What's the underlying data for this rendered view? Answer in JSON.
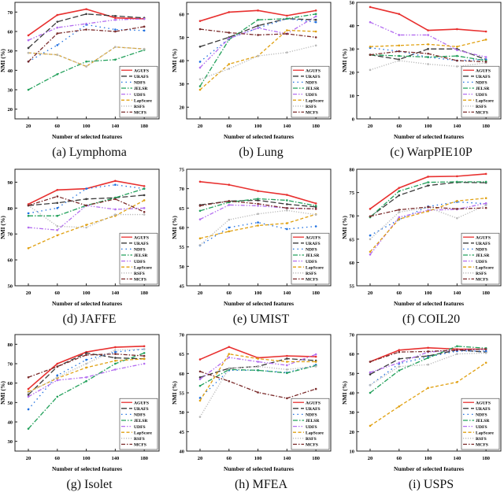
{
  "series_styles": {
    "AGUFS": {
      "color": "#e8302f"
    },
    "URAFS": {
      "color": "#3a3a3a"
    },
    "NDFS": {
      "color": "#1e6fe0"
    },
    "JELSR": {
      "color": "#21a05a"
    },
    "UDFS": {
      "color": "#b36df0"
    },
    "LapScore": {
      "color": "#e0a010"
    },
    "RSFS": {
      "color": "#b8b8b8"
    },
    "MCFS": {
      "color": "#7a2a2a"
    }
  },
  "chart_data": [
    {
      "type": "line",
      "caption": "(a) Lymphoma",
      "xlabel": "Number of selected features",
      "ylabel": "NMI (%)",
      "x": [
        20,
        60,
        100,
        140,
        180
      ],
      "ylim": [
        15,
        75
      ],
      "yticks": [
        20,
        30,
        40,
        50,
        60,
        70
      ],
      "legend": "bottom-right",
      "series": [
        {
          "name": "AGUFS",
          "values": [
            58,
            68.5,
            71.5,
            67,
            66.5
          ]
        },
        {
          "name": "URAFS",
          "values": [
            51.5,
            65,
            69,
            68,
            67
          ]
        },
        {
          "name": "NDFS",
          "values": [
            44.5,
            53,
            63.5,
            61,
            60.5
          ]
        },
        {
          "name": "JELSR",
          "values": [
            30,
            38,
            44.5,
            45.5,
            50.5
          ]
        },
        {
          "name": "UDFS",
          "values": [
            55.5,
            62,
            64,
            66,
            66.5
          ]
        },
        {
          "name": "LapScore",
          "values": [
            49,
            48,
            42,
            52,
            51
          ]
        },
        {
          "name": "RSFS",
          "values": [
            49,
            48,
            42,
            52,
            51
          ]
        },
        {
          "name": "MCFS",
          "values": [
            44.5,
            59,
            61,
            60,
            62.5
          ]
        }
      ]
    },
    {
      "type": "line",
      "caption": "(b) Lung",
      "xlabel": "Number of selected features",
      "ylabel": "NMI (%)",
      "x": [
        20,
        60,
        100,
        140,
        180
      ],
      "ylim": [
        15,
        65
      ],
      "yticks": [
        20,
        30,
        40,
        50,
        60
      ],
      "legend": "bottom-right",
      "series": [
        {
          "name": "AGUFS",
          "values": [
            57,
            60.8,
            61.5,
            59.3,
            61.5
          ]
        },
        {
          "name": "URAFS",
          "values": [
            46,
            50,
            55,
            58,
            57.5
          ]
        },
        {
          "name": "NDFS",
          "values": [
            39.5,
            49.5,
            54,
            58,
            56.5
          ]
        },
        {
          "name": "JELSR",
          "values": [
            29,
            49,
            57.5,
            58,
            60
          ]
        },
        {
          "name": "UDFS",
          "values": [
            37,
            49.5,
            54,
            51.5,
            59
          ]
        },
        {
          "name": "LapScore",
          "values": [
            27.5,
            38.5,
            42,
            53,
            52.5
          ]
        },
        {
          "name": "RSFS",
          "values": [
            32,
            36.5,
            42,
            43.5,
            46.5
          ]
        },
        {
          "name": "MCFS",
          "values": [
            53.5,
            52,
            51,
            51.5,
            50
          ]
        }
      ]
    },
    {
      "type": "line",
      "caption": "(c) WarpPIE10P",
      "xlabel": "Number of selected features",
      "ylabel": "NMI (%)",
      "x": [
        20,
        60,
        100,
        140,
        180
      ],
      "ylim": [
        0,
        50
      ],
      "yticks": [
        0,
        10,
        20,
        30,
        40,
        50
      ],
      "legend": "bottom-right",
      "series": [
        {
          "name": "AGUFS",
          "values": [
            48,
            45,
            38,
            38.5,
            37.5
          ]
        },
        {
          "name": "URAFS",
          "values": [
            27.5,
            25.5,
            30,
            30,
            25.5
          ]
        },
        {
          "name": "NDFS",
          "values": [
            30.5,
            29,
            26.5,
            25,
            25.5
          ]
        },
        {
          "name": "JELSR",
          "values": [
            27.5,
            27,
            26.5,
            27,
            25
          ]
        },
        {
          "name": "UDFS",
          "values": [
            41.5,
            36,
            36,
            29.5,
            26.5
          ]
        },
        {
          "name": "LapScore",
          "values": [
            31,
            31.5,
            32,
            31,
            34
          ]
        },
        {
          "name": "RSFS",
          "values": [
            21,
            25,
            23.5,
            22.5,
            24
          ]
        },
        {
          "name": "MCFS",
          "values": [
            27.5,
            29,
            28,
            25,
            24.5
          ]
        }
      ]
    },
    {
      "type": "line",
      "caption": "(d) JAFFE",
      "xlabel": "Number of selected features",
      "ylabel": "NMI (%)",
      "x": [
        20,
        60,
        100,
        140,
        180
      ],
      "ylim": [
        50,
        95
      ],
      "yticks": [
        50,
        60,
        70,
        80,
        90
      ],
      "legend": "bottom-right",
      "series": [
        {
          "name": "AGUFS",
          "values": [
            81.5,
            87,
            87.5,
            90.5,
            88.5
          ]
        },
        {
          "name": "URAFS",
          "values": [
            81,
            82,
            83.5,
            84,
            85
          ]
        },
        {
          "name": "NDFS",
          "values": [
            78,
            80,
            87.5,
            89,
            87.5
          ]
        },
        {
          "name": "JELSR",
          "values": [
            77,
            77,
            81,
            84,
            87.5
          ]
        },
        {
          "name": "UDFS",
          "values": [
            72.5,
            71.5,
            81,
            79.5,
            80
          ]
        },
        {
          "name": "LapScore",
          "values": [
            64.5,
            69.5,
            73.5,
            77,
            83
          ]
        },
        {
          "name": "RSFS",
          "values": [
            81,
            73,
            72.5,
            77.5,
            77.5
          ]
        },
        {
          "name": "MCFS",
          "values": [
            81,
            84.5,
            81,
            83.5,
            78.5
          ]
        }
      ]
    },
    {
      "type": "line",
      "caption": "(e) UMIST",
      "xlabel": "Number of selected features",
      "ylabel": "NMI (%)",
      "x": [
        20,
        60,
        100,
        140,
        180
      ],
      "ylim": [
        45,
        75
      ],
      "yticks": [
        45,
        50,
        55,
        60,
        65,
        70,
        75
      ],
      "legend": "bottom-right",
      "series": [
        {
          "name": "AGUFS",
          "values": [
            71.8,
            71,
            69.4,
            68.4,
            66.2
          ]
        },
        {
          "name": "URAFS",
          "values": [
            65.8,
            66.8,
            67,
            66,
            65.3
          ]
        },
        {
          "name": "NDFS",
          "values": [
            55.4,
            60,
            61.3,
            59.6,
            60.3
          ]
        },
        {
          "name": "JELSR",
          "values": [
            64.3,
            66.5,
            67.4,
            67,
            65.6
          ]
        },
        {
          "name": "UDFS",
          "values": [
            62.1,
            65.8,
            65.6,
            65,
            64.8
          ]
        },
        {
          "name": "LapScore",
          "values": [
            57.2,
            59,
            60.5,
            61.1,
            63.4
          ]
        },
        {
          "name": "RSFS",
          "values": [
            55.5,
            62,
            63.5,
            64.4,
            63.3
          ]
        },
        {
          "name": "MCFS",
          "values": [
            65.6,
            66.8,
            66.1,
            65,
            64.8
          ]
        }
      ]
    },
    {
      "type": "line",
      "caption": "(f) COIL20",
      "xlabel": "Number of selected features",
      "ylabel": "NMI (%)",
      "x": [
        20,
        60,
        100,
        140,
        180
      ],
      "ylim": [
        55,
        80
      ],
      "yticks": [
        55,
        60,
        65,
        70,
        75,
        80
      ],
      "legend": "bottom-right",
      "series": [
        {
          "name": "AGUFS",
          "values": [
            71.5,
            76,
            78.4,
            78.5,
            79
          ]
        },
        {
          "name": "URAFS",
          "values": [
            69.8,
            74.4,
            76.5,
            77.2,
            77.1
          ]
        },
        {
          "name": "NDFS",
          "values": [
            65.8,
            69.2,
            72,
            73,
            72.6
          ]
        },
        {
          "name": "JELSR",
          "values": [
            69.7,
            75.3,
            77.2,
            77.3,
            77.3
          ]
        },
        {
          "name": "UDFS",
          "values": [
            61.7,
            69.7,
            71.2,
            71.4,
            72.7
          ]
        },
        {
          "name": "LapScore",
          "values": [
            62.3,
            69.3,
            71,
            73.2,
            73.8
          ]
        },
        {
          "name": "RSFS",
          "values": [
            65,
            70.8,
            71.8,
            69.5,
            72.3
          ]
        },
        {
          "name": "MCFS",
          "values": [
            69.9,
            71.3,
            71.9,
            71.5,
            71.7
          ]
        }
      ]
    },
    {
      "type": "line",
      "caption": "(g) Isolet",
      "xlabel": "Number of selected features",
      "ylabel": "NMI (%)",
      "x": [
        20,
        60,
        100,
        140,
        180
      ],
      "ylim": [
        25,
        85
      ],
      "yticks": [
        30,
        40,
        50,
        60,
        70,
        80
      ],
      "legend": "bottom-right",
      "series": [
        {
          "name": "AGUFS",
          "values": [
            57,
            70,
            76,
            78.5,
            79
          ]
        },
        {
          "name": "URAFS",
          "values": [
            54,
            68.5,
            75.5,
            73,
            72.5
          ]
        },
        {
          "name": "NDFS",
          "values": [
            46.5,
            64,
            72,
            76,
            77.5
          ]
        },
        {
          "name": "JELSR",
          "values": [
            36.5,
            53,
            61,
            70,
            75.5
          ]
        },
        {
          "name": "UDFS",
          "values": [
            53,
            61.5,
            63,
            67,
            70
          ]
        },
        {
          "name": "LapScore",
          "values": [
            55.5,
            62.5,
            68,
            71.5,
            72.5
          ]
        },
        {
          "name": "RSFS",
          "values": [
            55,
            63,
            70,
            77,
            77.5
          ]
        },
        {
          "name": "MCFS",
          "values": [
            63,
            68.5,
            74.5,
            75,
            74
          ]
        }
      ]
    },
    {
      "type": "line",
      "caption": "(h) MFEA",
      "xlabel": "Number of selected features",
      "ylabel": "NMI (%)",
      "x": [
        20,
        60,
        100,
        140,
        180
      ],
      "ylim": [
        40,
        70
      ],
      "yticks": [
        40,
        45,
        50,
        55,
        60,
        65,
        70
      ],
      "legend": "bottom-right",
      "series": [
        {
          "name": "AGUFS",
          "values": [
            63.6,
            66.8,
            64,
            64.5,
            64.3
          ]
        },
        {
          "name": "URAFS",
          "values": [
            59,
            61.3,
            61.8,
            63.8,
            63.3
          ]
        },
        {
          "name": "NDFS",
          "values": [
            53.7,
            60.8,
            60.8,
            60.2,
            62.2
          ]
        },
        {
          "name": "JELSR",
          "values": [
            56.8,
            61,
            60.8,
            60.1,
            62
          ]
        },
        {
          "name": "UDFS",
          "values": [
            58.5,
            64.1,
            63,
            62.1,
            64.9
          ]
        },
        {
          "name": "LapScore",
          "values": [
            53,
            65,
            63.8,
            63,
            63
          ]
        },
        {
          "name": "RSFS",
          "values": [
            48.8,
            61.3,
            61.8,
            61,
            61.8
          ]
        },
        {
          "name": "MCFS",
          "values": [
            60.5,
            58,
            55.1,
            53.6,
            56
          ]
        }
      ]
    },
    {
      "type": "line",
      "caption": "(i) USPS",
      "xlabel": "Number of selected features",
      "ylabel": "NMI (%)",
      "x": [
        20,
        60,
        100,
        140,
        180
      ],
      "ylim": [
        10,
        70
      ],
      "yticks": [
        10,
        20,
        30,
        40,
        50,
        60,
        70
      ],
      "legend": "bottom-right",
      "series": [
        {
          "name": "AGUFS",
          "values": [
            56,
            62,
            63.2,
            62.5,
            62.5
          ]
        },
        {
          "name": "URAFS",
          "values": [
            49.5,
            57.5,
            59,
            62,
            61
          ]
        },
        {
          "name": "NDFS",
          "values": [
            44,
            55,
            58.5,
            61.5,
            61.5
          ]
        },
        {
          "name": "JELSR",
          "values": [
            40,
            51.5,
            58,
            64,
            63
          ]
        },
        {
          "name": "UDFS",
          "values": [
            50.5,
            55.5,
            61,
            62,
            62.5
          ]
        },
        {
          "name": "LapScore",
          "values": [
            23,
            33,
            42.5,
            45.5,
            55.5
          ]
        },
        {
          "name": "RSFS",
          "values": [
            44,
            53.5,
            54.5,
            60,
            60.5
          ]
        },
        {
          "name": "MCFS",
          "values": [
            56,
            61,
            61.3,
            62,
            62.5
          ]
        }
      ]
    }
  ]
}
